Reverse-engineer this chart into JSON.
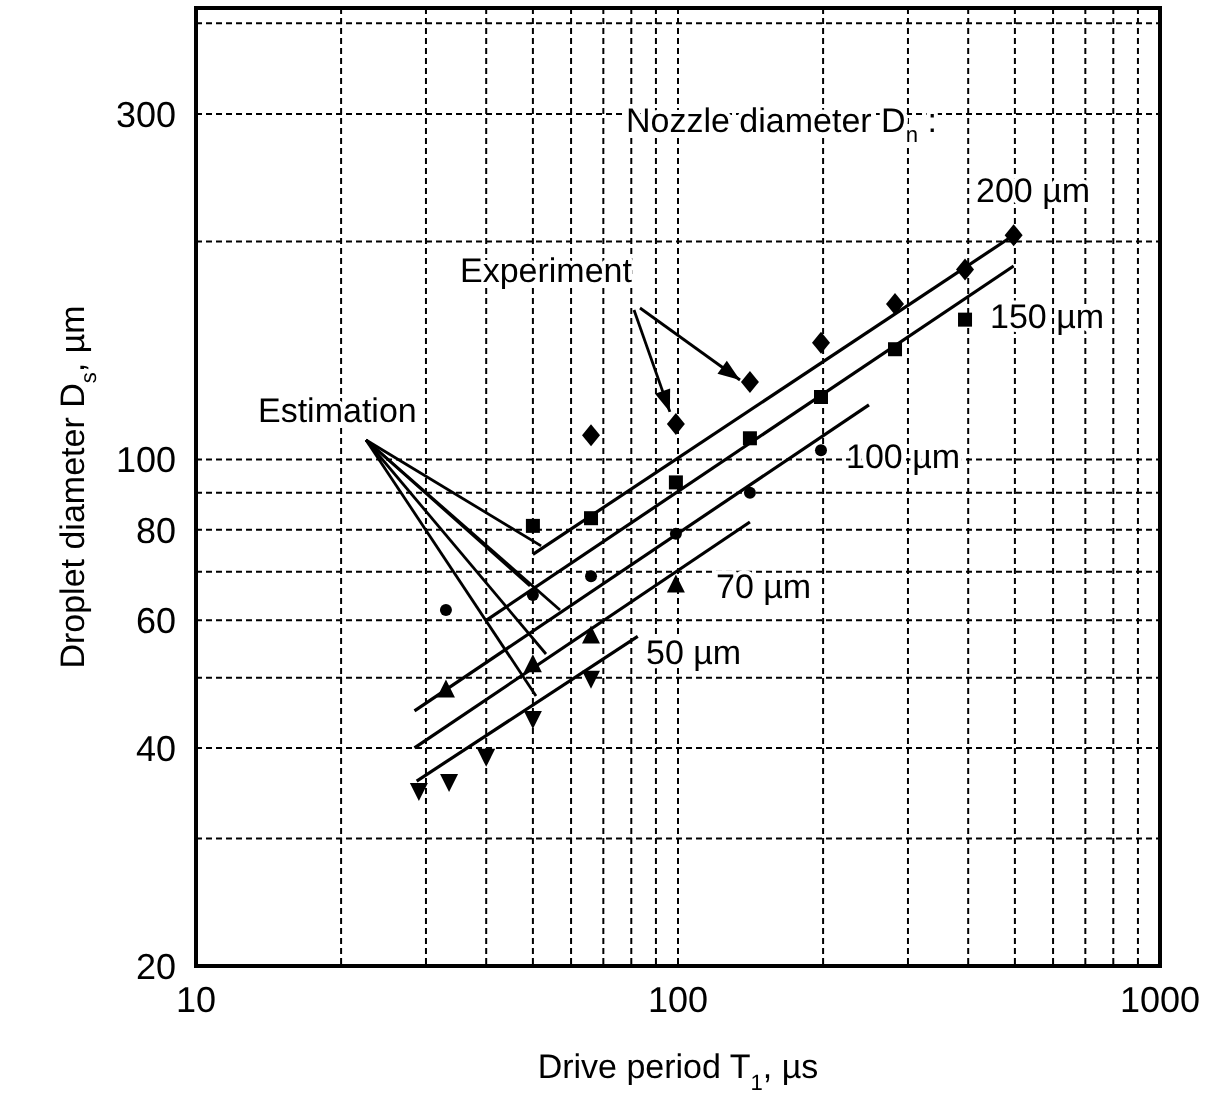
{
  "chart_data": {
    "type": "scatter",
    "xlabel": "Drive period T$_{1}$,  µs",
    "ylabel": "Droplet diameter D$_{s}$,  µm",
    "log": "xy",
    "grid": true,
    "xlim": [
      10,
      1000
    ],
    "xticks": [
      10,
      {
        "value": 20,
        "label": null
      },
      {
        "value": 30,
        "label": null
      },
      {
        "value": 40,
        "label": null
      },
      {
        "value": 50,
        "label": null
      },
      {
        "value": 60,
        "label": null
      },
      {
        "value": 70,
        "label": null
      },
      {
        "value": 80,
        "label": null
      },
      {
        "value": 90,
        "label": null
      },
      100,
      {
        "value": 200,
        "label": null
      },
      {
        "value": 300,
        "label": null
      },
      {
        "value": 400,
        "label": null
      },
      {
        "value": 500,
        "label": null
      },
      {
        "value": 600,
        "label": null
      },
      {
        "value": 700,
        "label": null
      },
      {
        "value": 800,
        "label": null
      },
      {
        "value": 900,
        "label": null
      },
      1000
    ],
    "ylim": [
      20,
      420
    ],
    "yticks": [
      20,
      {
        "value": 30,
        "label": null
      },
      40,
      {
        "value": 50,
        "label": null
      },
      60,
      {
        "value": 70,
        "label": null
      },
      80,
      {
        "value": 90,
        "label": null
      },
      100,
      {
        "value": 200,
        "label": null
      },
      300,
      {
        "value": 400,
        "label": null
      }
    ],
    "series": [
      {
        "marker": "diamond",
        "color": "#000000",
        "x": [
          66,
          99,
          141,
          198,
          282,
          394,
          497
        ],
        "values": [
          108,
          112,
          128,
          145,
          164,
          183,
          204
        ]
      },
      {
        "marker": "square",
        "color": "#000000",
        "x": [
          50,
          66,
          99,
          141,
          198,
          282,
          394
        ],
        "values": [
          81,
          83,
          93,
          107,
          122,
          142,
          156
        ]
      },
      {
        "marker": "circle",
        "color": "#000000",
        "x": [
          33,
          50,
          66,
          99,
          141,
          198
        ],
        "values": [
          62,
          65,
          69,
          79,
          90,
          103
        ]
      },
      {
        "marker": "triangle",
        "color": "#000000",
        "x": [
          33,
          50,
          66,
          99
        ],
        "values": [
          48,
          52,
          57,
          67
        ]
      },
      {
        "marker": "triangle-down",
        "color": "#000000",
        "x": [
          29,
          33.5,
          40,
          50,
          66
        ],
        "values": [
          35,
          36,
          39,
          44,
          50
        ]
      },
      {
        "type": "line",
        "marker": "none",
        "color": "#000000",
        "x": [
          50,
          497
        ],
        "values": [
          74,
          204
        ]
      },
      {
        "type": "line",
        "marker": "none",
        "color": "#000000",
        "x": [
          40,
          497
        ],
        "values": [
          60,
          185
        ]
      },
      {
        "type": "line",
        "marker": "none",
        "color": "#000000",
        "x": [
          28.4,
          249
        ],
        "values": [
          45,
          119
        ]
      },
      {
        "type": "line",
        "marker": "none",
        "color": "#000000",
        "x": [
          28.4,
          141
        ],
        "values": [
          40,
          82
        ]
      },
      {
        "type": "line",
        "marker": "none",
        "color": "#000000",
        "x": [
          28.7,
          82.5
        ],
        "values": [
          36,
          57
        ]
      }
    ],
    "annotations": [
      "Nozzle diameter D$_{n}$ :",
      "200 µm",
      "150 µm",
      "100 µm",
      "70 µm",
      "50 µm",
      {
        "text": "Experiment",
        "x": 99,
        "y": 112
      },
      {
        "text": "Estimation",
        "x": 52,
        "y": 76
      }
    ]
  }
}
